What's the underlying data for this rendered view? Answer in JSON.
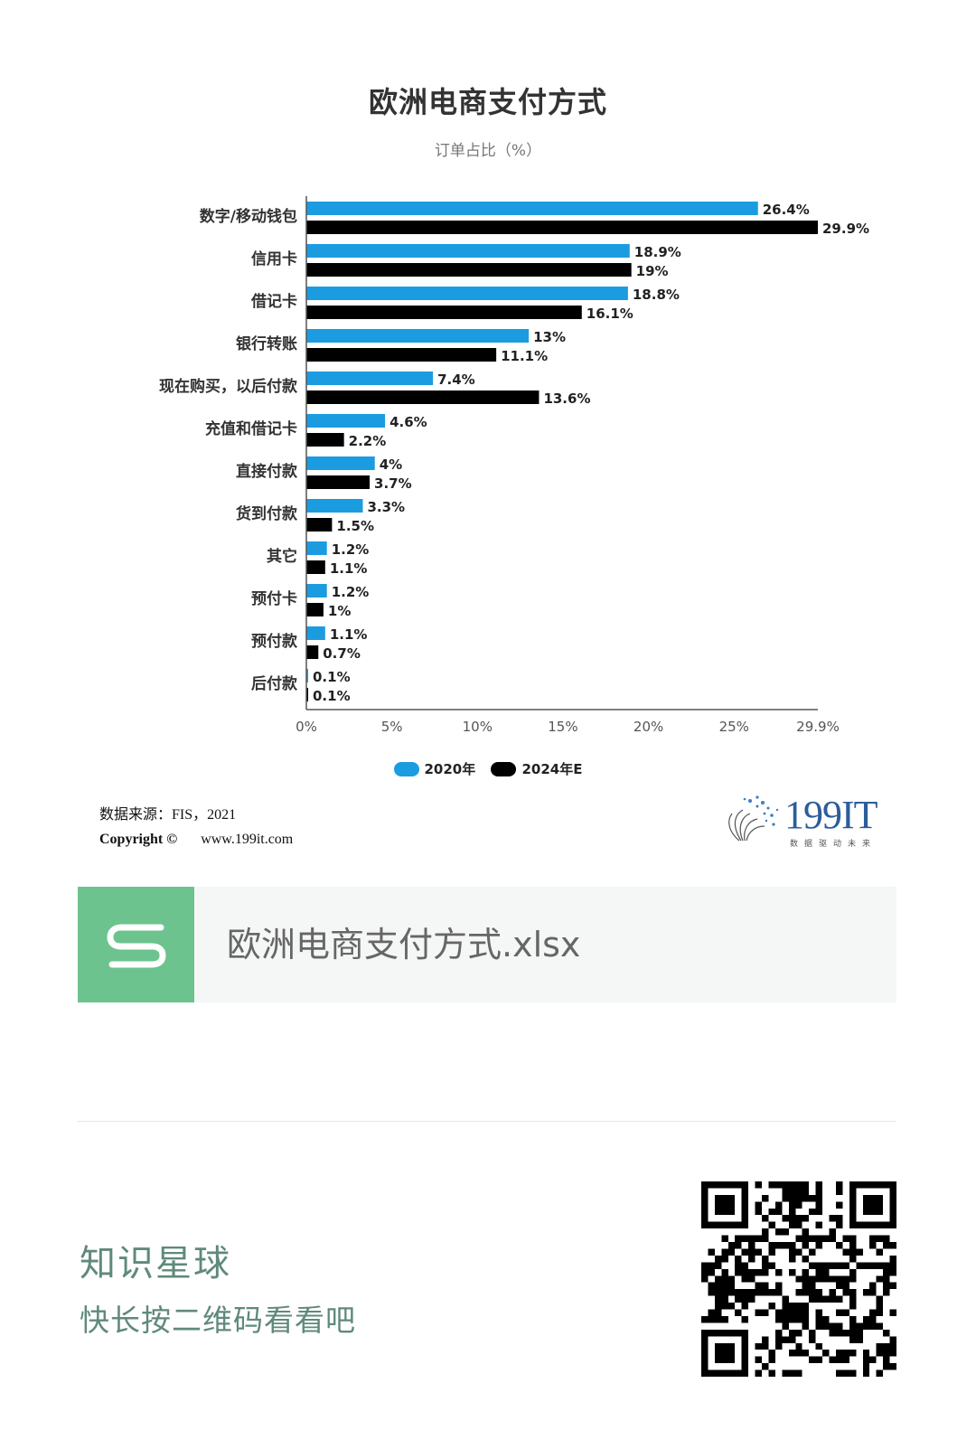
{
  "chart_data": {
    "type": "bar",
    "orientation": "horizontal",
    "title": "欧洲电商支付方式",
    "subtitle": "订单占比（%）",
    "categories": [
      "数字/移动钱包",
      "信用卡",
      "借记卡",
      "银行转账",
      "现在购买，以后付款",
      "充值和借记卡",
      "直接付款",
      "货到付款",
      "其它",
      "预付卡",
      "预付款",
      "后付款"
    ],
    "series": [
      {
        "name": "2020年",
        "color": "#1b9ce0",
        "values": [
          26.4,
          18.9,
          18.8,
          13,
          7.4,
          4.6,
          4,
          3.3,
          1.2,
          1.2,
          1.1,
          0.1
        ],
        "labels": [
          "26.4%",
          "18.9%",
          "18.8%",
          "13%",
          "7.4%",
          "4.6%",
          "4%",
          "3.3%",
          "1.2%",
          "1.2%",
          "1.1%",
          "0.1%"
        ]
      },
      {
        "name": "2024年E",
        "color": "#000000",
        "values": [
          29.9,
          19,
          16.1,
          11.1,
          13.6,
          2.2,
          3.7,
          1.5,
          1.1,
          1,
          0.7,
          0.1
        ],
        "labels": [
          "29.9%",
          "19%",
          "16.1%",
          "11.1%",
          "13.6%",
          "2.2%",
          "3.7%",
          "1.5%",
          "1.1%",
          "1%",
          "0.7%",
          "0.1%"
        ]
      }
    ],
    "xlim": [
      0,
      29.9
    ],
    "xticks": [
      0,
      5,
      10,
      15,
      20,
      25,
      29.9
    ],
    "xtick_labels": [
      "0%",
      "5%",
      "10%",
      "15%",
      "20%",
      "25%",
      "29.9%"
    ],
    "legend_position": "bottom-center",
    "grid": false
  },
  "source": {
    "label": "数据来源：FIS，2021",
    "copyright": "Copyright ©",
    "site": "www.199it.com"
  },
  "brand": {
    "name": "199IT",
    "tagline": "数据驱动未来",
    "color": "#2c5d9a"
  },
  "file_card": {
    "icon": "spreadsheet-s-icon",
    "filename": "欧洲电商支付方式.xlsx",
    "icon_color": "#6cc38e"
  },
  "footer": {
    "title": "知识星球",
    "subtitle": "快长按二维码看看吧",
    "qr": "qr-code-icon"
  }
}
